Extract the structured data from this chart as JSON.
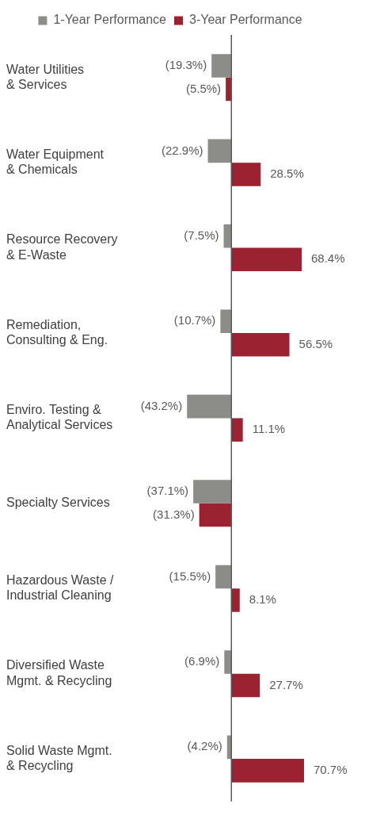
{
  "chart_data": {
    "type": "bar",
    "orientation": "horizontal",
    "legend": "top",
    "categories": [
      "Water Utilities\n& Services",
      "Water Equipment\n& Chemicals",
      "Resource Recovery\n& E-Waste",
      "Remediation,\nConsulting & Eng.",
      "Enviro. Testing &\nAnalytical Services",
      "Specialty Services",
      "Hazardous Waste /\nIndustrial Cleaning",
      "Diversified Waste\nMgmt. & Recycling",
      "Solid Waste Mgmt.\n& Recycling"
    ],
    "ref_lines": [
      {
        "axis": "x",
        "value": 0,
        "color": "#595959"
      }
    ],
    "series": [
      {
        "name": "1-Year Performance",
        "color": "#8c8c88",
        "values": [
          -19.3,
          -22.9,
          -7.5,
          -10.7,
          -43.2,
          -37.1,
          -15.5,
          -6.9,
          -4.2
        ],
        "value_labels": [
          "(19.3%)",
          "(22.9%)",
          "(7.5%)",
          "(10.7%)",
          "(43.2%)",
          "(37.1%)",
          "(15.5%)",
          "(6.9%)",
          "(4.2%)"
        ]
      },
      {
        "name": "3-Year Performance",
        "color": "#9b2331",
        "values": [
          -5.5,
          28.5,
          68.4,
          56.5,
          11.1,
          -31.3,
          8.1,
          27.7,
          70.7
        ],
        "value_labels": [
          "(5.5%)",
          "28.5%",
          "68.4%",
          "56.5%",
          "11.1%",
          "(31.3%)",
          "8.1%",
          "27.7%",
          "70.7%"
        ]
      }
    ]
  }
}
